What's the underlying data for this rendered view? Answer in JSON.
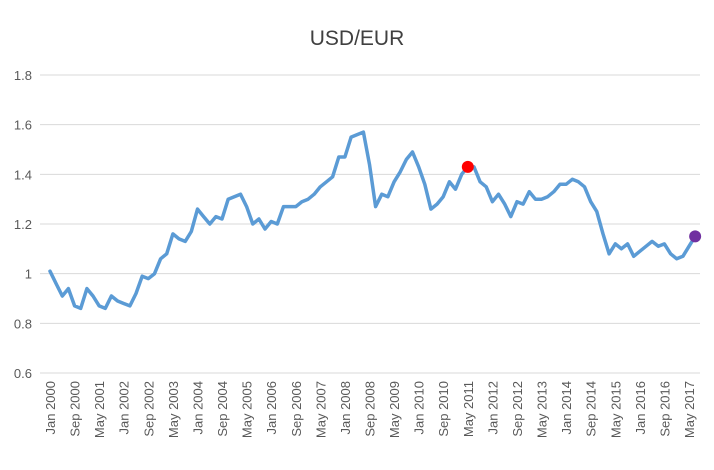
{
  "chart_data": {
    "type": "line",
    "title": "USD/EUR",
    "categories": [
      "Jan 2000",
      null,
      null,
      null,
      "Sep 2000",
      null,
      null,
      null,
      "May 2001",
      null,
      null,
      null,
      "Jan 2002",
      null,
      null,
      null,
      "Sep 2002",
      null,
      null,
      null,
      "May 2003",
      null,
      null,
      null,
      "Jan 2004",
      null,
      null,
      null,
      "Sep 2004",
      null,
      null,
      null,
      "May 2005",
      null,
      null,
      null,
      "Jan 2006",
      null,
      null,
      null,
      "Sep 2006",
      null,
      null,
      null,
      "May 2007",
      null,
      null,
      null,
      "Jan 2008",
      null,
      null,
      null,
      "Sep 2008",
      null,
      null,
      null,
      "May 2009",
      null,
      null,
      null,
      "Jan 2010",
      null,
      null,
      null,
      "Sep 2010",
      null,
      null,
      null,
      "May 2011",
      null,
      null,
      null,
      "Jan 2012",
      null,
      null,
      null,
      "Sep 2012",
      null,
      null,
      null,
      "May 2013",
      null,
      null,
      null,
      "Jan 2014",
      null,
      null,
      null,
      "Sep 2014",
      null,
      null,
      null,
      "May 2015",
      null,
      null,
      null,
      "Jan 2016",
      null,
      null,
      null,
      "Sep 2016",
      null,
      null,
      null,
      "May 2017",
      null
    ],
    "values": [
      1.01,
      0.96,
      0.91,
      0.94,
      0.87,
      0.86,
      0.94,
      0.91,
      0.87,
      0.86,
      0.91,
      0.89,
      0.88,
      0.87,
      0.92,
      0.99,
      0.98,
      1.0,
      1.06,
      1.08,
      1.16,
      1.14,
      1.13,
      1.17,
      1.26,
      1.23,
      1.2,
      1.23,
      1.22,
      1.3,
      1.31,
      1.32,
      1.27,
      1.2,
      1.22,
      1.18,
      1.21,
      1.2,
      1.27,
      1.27,
      1.27,
      1.29,
      1.3,
      1.32,
      1.35,
      1.37,
      1.39,
      1.47,
      1.47,
      1.55,
      1.56,
      1.57,
      1.44,
      1.27,
      1.32,
      1.31,
      1.37,
      1.41,
      1.46,
      1.49,
      1.43,
      1.36,
      1.26,
      1.28,
      1.31,
      1.37,
      1.34,
      1.4,
      1.43,
      1.43,
      1.37,
      1.35,
      1.29,
      1.32,
      1.28,
      1.23,
      1.29,
      1.28,
      1.33,
      1.3,
      1.3,
      1.31,
      1.33,
      1.36,
      1.36,
      1.38,
      1.37,
      1.35,
      1.29,
      1.25,
      1.16,
      1.08,
      1.12,
      1.1,
      1.12,
      1.07,
      1.09,
      1.11,
      1.13,
      1.11,
      1.12,
      1.08,
      1.06,
      1.07,
      1.11,
      1.15
    ],
    "color": "#5b9bd5",
    "highlights": [
      {
        "index": 68,
        "color": "#ff0000"
      },
      {
        "index": 105,
        "color": "#7030a0"
      }
    ],
    "ylim": [
      0.6,
      1.8
    ],
    "yticks": [
      0.6,
      0.8,
      1,
      1.2,
      1.4,
      1.6,
      1.8
    ],
    "grid": true
  }
}
